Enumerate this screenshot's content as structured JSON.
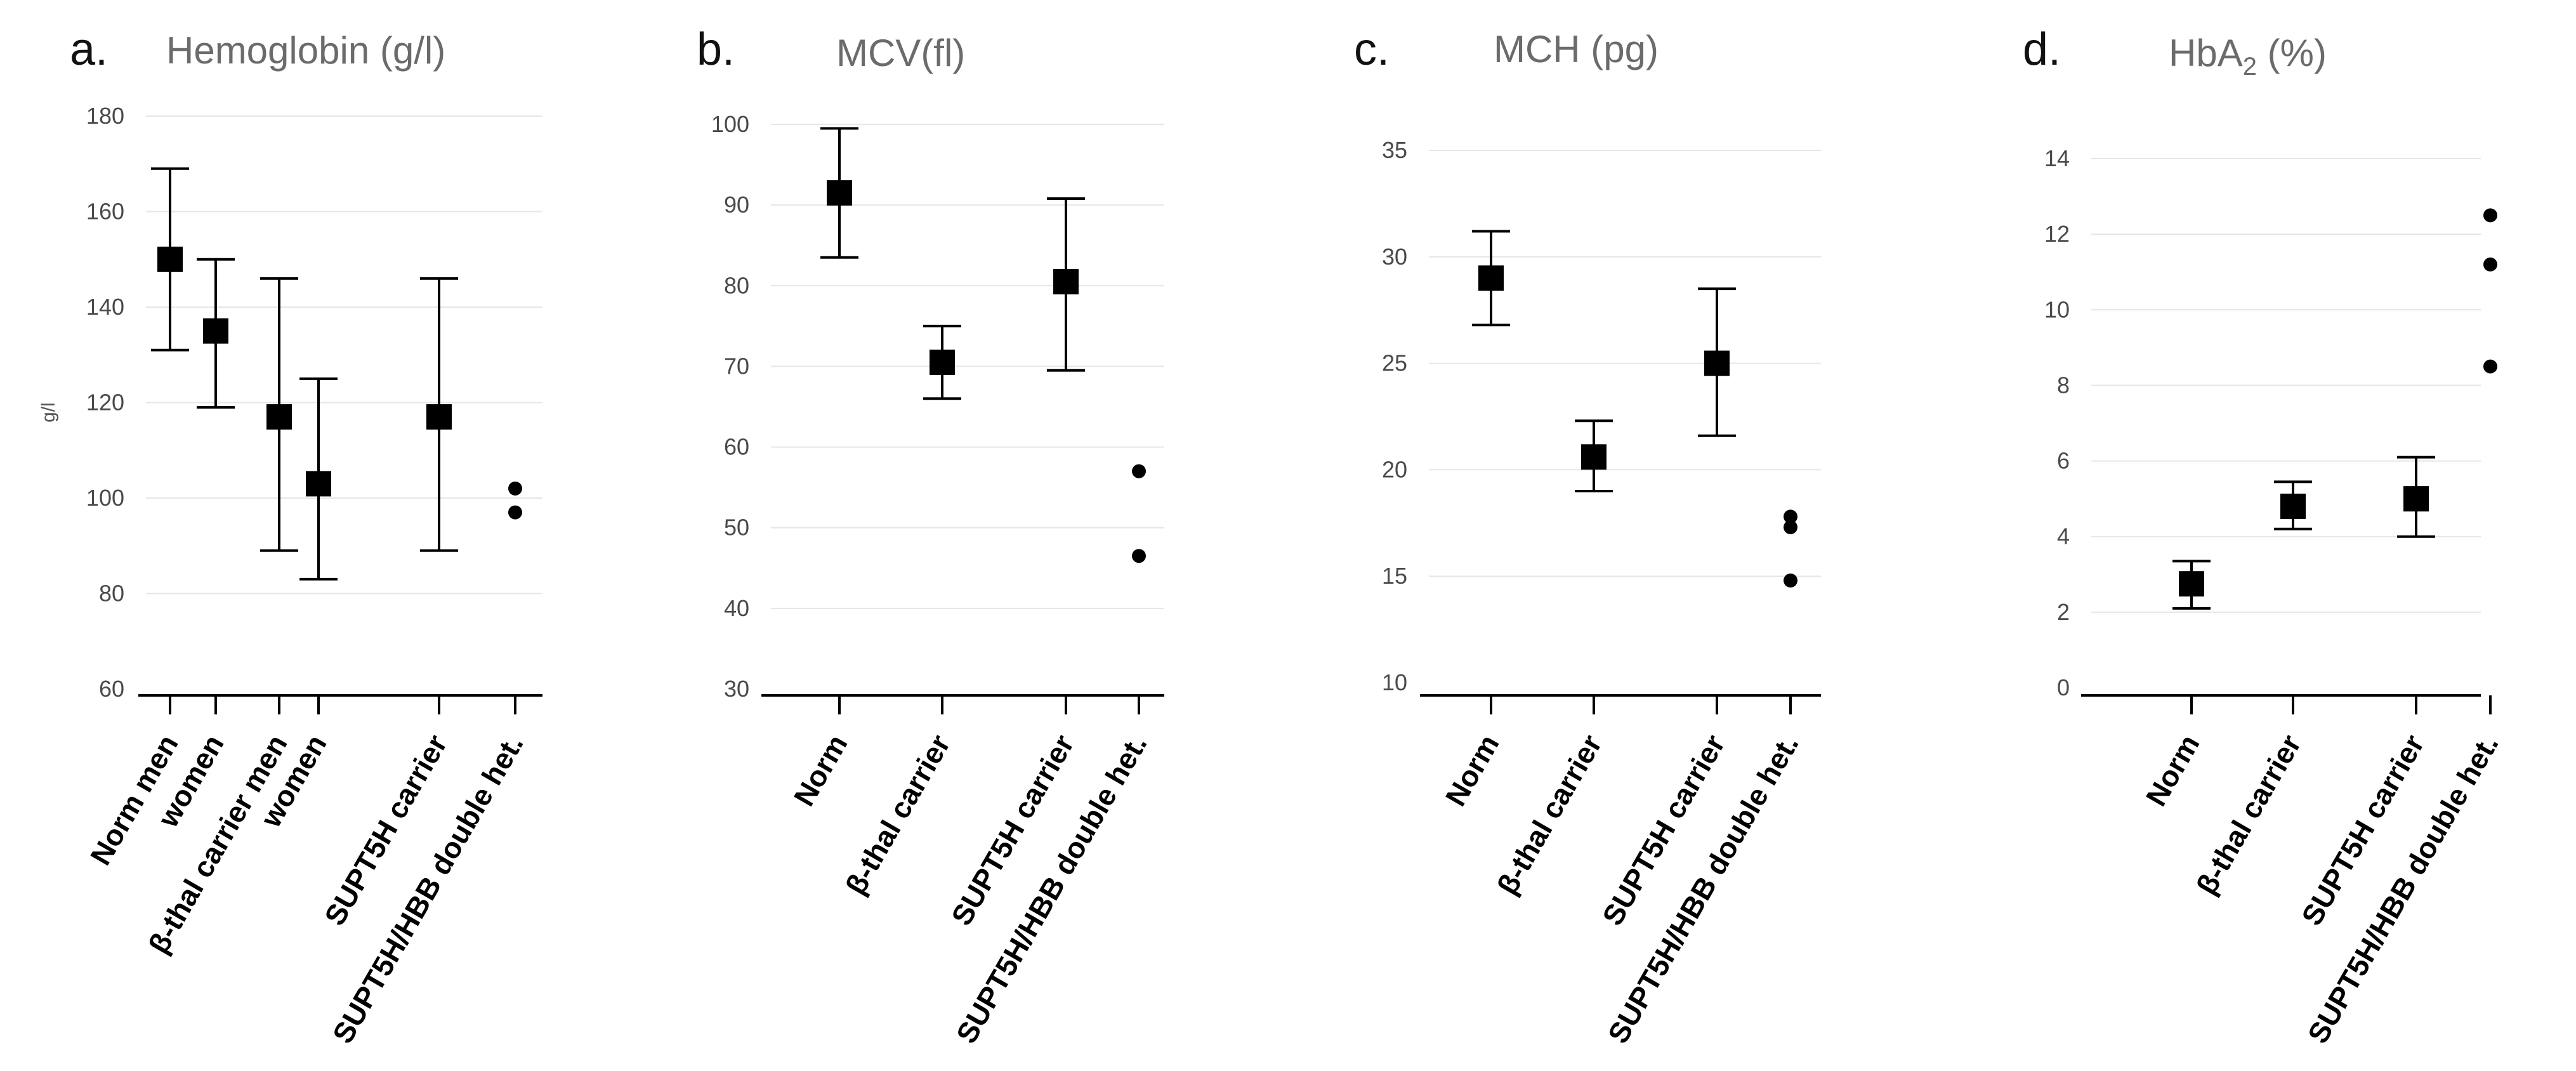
{
  "chart_data": [
    {
      "type": "scatter",
      "panel_label": "a.",
      "title": "Hemoglobin (g/l)",
      "ylabel": "g/l",
      "ylim": [
        60,
        180
      ],
      "yticks": [
        60,
        80,
        100,
        120,
        140,
        160,
        180
      ],
      "grid": true,
      "categories": [
        "Norm men",
        "women",
        "β-thal carrier men",
        "women",
        "",
        "SUPT5H carrier",
        "SUPT5H/HBB double het."
      ],
      "series": [
        {
          "values": [
            150,
            135,
            117,
            103,
            null,
            117,
            null
          ],
          "err_low": [
            131,
            119,
            89,
            83,
            null,
            89,
            null
          ],
          "err_high": [
            169,
            150,
            146,
            125,
            null,
            146,
            null
          ]
        }
      ],
      "points": [
        {
          "category_index": 6,
          "values": [
            102,
            97
          ]
        }
      ]
    },
    {
      "type": "scatter",
      "panel_label": "b.",
      "title": "MCV(fl)",
      "ylabel": "",
      "ylim": [
        30,
        100
      ],
      "yticks": [
        30,
        40,
        50,
        60,
        70,
        80,
        90,
        100
      ],
      "grid": true,
      "categories": [
        "Norm",
        "β-thal carrier",
        "SUPT5H carrier",
        "SUPT5H/HBB double het."
      ],
      "series": [
        {
          "values": [
            91.5,
            70.5,
            80.5,
            null
          ],
          "err_low": [
            83.5,
            66,
            69.5,
            null
          ],
          "err_high": [
            99.5,
            75,
            90.8,
            null
          ]
        }
      ],
      "points": [
        {
          "category_index": 3,
          "values": [
            57,
            46.5
          ]
        }
      ]
    },
    {
      "type": "scatter",
      "panel_label": "c.",
      "title": "MCH (pg)",
      "ylabel": "",
      "ylim": [
        10,
        35
      ],
      "yticks": [
        10,
        15,
        20,
        25,
        30,
        35
      ],
      "grid": true,
      "categories": [
        "Norm",
        "β-thal carrier",
        "SUPT5H carrier",
        "SUPT5H/HBB double het."
      ],
      "series": [
        {
          "values": [
            29,
            20.6,
            25,
            null
          ],
          "err_low": [
            26.8,
            19,
            21.6,
            null
          ],
          "err_high": [
            31.2,
            22.3,
            28.5,
            null
          ]
        }
      ],
      "points": [
        {
          "category_index": 3,
          "values": [
            17.8,
            17.3,
            14.8
          ]
        }
      ]
    },
    {
      "type": "scatter",
      "panel_label": "d.",
      "title": "HbA",
      "title_subscript": "2",
      "title_suffix": " (%)",
      "ylabel": "",
      "ylim": [
        0,
        14
      ],
      "yticks": [
        0,
        2,
        4,
        6,
        8,
        10,
        12,
        14
      ],
      "grid": true,
      "categories": [
        "Norm",
        "β-thal carrier",
        "SUPT5H carrier",
        "SUPT5H/HBB double het."
      ],
      "series": [
        {
          "values": [
            2.75,
            4.8,
            5,
            null
          ],
          "err_low": [
            2.1,
            4.2,
            4,
            null
          ],
          "err_high": [
            3.35,
            5.45,
            6.1,
            null
          ]
        }
      ],
      "points": [
        {
          "category_index": 3,
          "values": [
            12.5,
            11.2,
            8.5
          ]
        }
      ]
    }
  ]
}
